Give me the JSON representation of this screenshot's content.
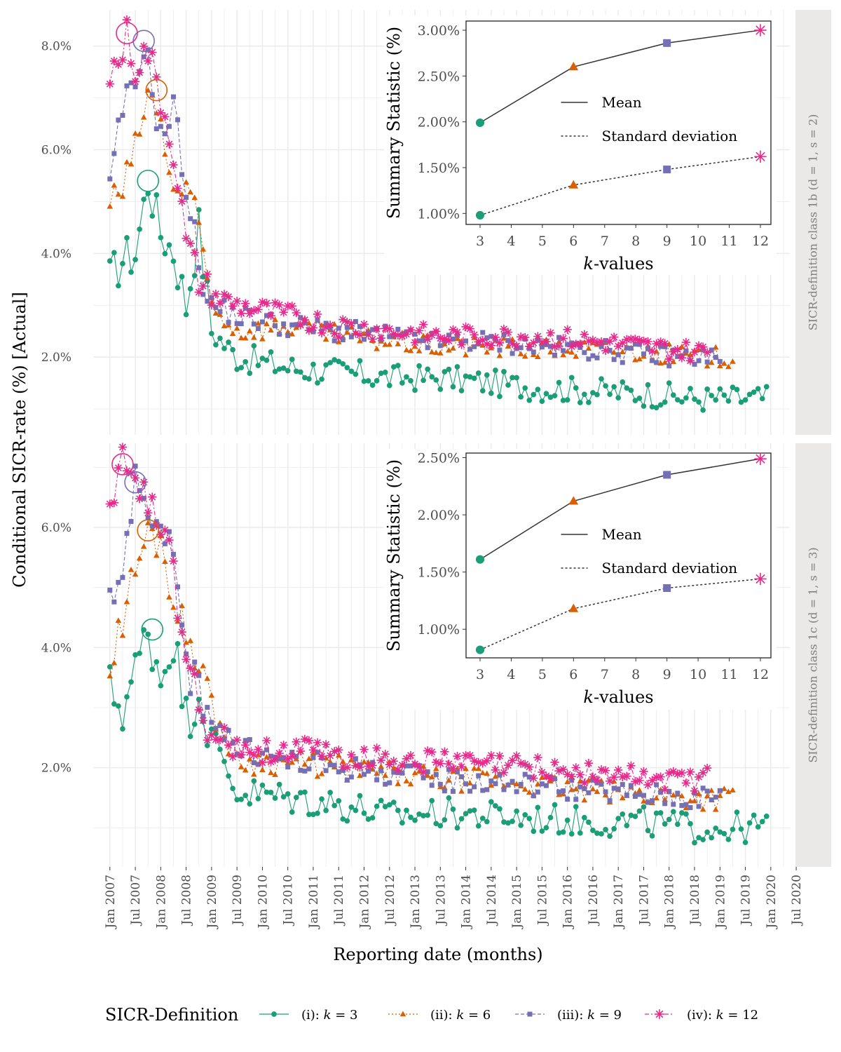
{
  "chart_data": {
    "type": "line",
    "xlabel": "Reporting date (months)",
    "ylabel": "Conditional SICR-rate (%) [Actual]",
    "x_ticks": [
      "Jan 2007",
      "Jul 2007",
      "Jan 2008",
      "Jul 2008",
      "Jan 2009",
      "Jul 2009",
      "Jan 2010",
      "Jul 2010",
      "Jan 2011",
      "Jul 2011",
      "Jan 2012",
      "Jul 2012",
      "Jan 2013",
      "Jul 2013",
      "Jan 2014",
      "Jul 2014",
      "Jan 2015",
      "Jul 2015",
      "Jan 2016",
      "Jul 2016",
      "Jan 2017",
      "Jul 2017",
      "Jan 2018",
      "Jul 2018",
      "Jan 2019",
      "Jul 2019",
      "Jan 2020",
      "Jul 2020"
    ],
    "legend": {
      "title": "SICR-Definition",
      "entries": [
        {
          "id": "k3",
          "prefix": "(i):",
          "label": "k = 3",
          "color": "#1b9e77",
          "marker": "circle",
          "dash": "solid"
        },
        {
          "id": "k6",
          "prefix": "(ii):",
          "label": "k = 6",
          "color": "#d95f02",
          "marker": "triangle",
          "dash": "dotted"
        },
        {
          "id": "k9",
          "prefix": "(iii):",
          "label": "k = 9",
          "color": "#7570b3",
          "marker": "square",
          "dash": "dashed"
        },
        {
          "id": "k12",
          "prefix": "(iv):",
          "label": "k = 12",
          "color": "#e7298a",
          "marker": "asterisk",
          "dash": "dashdot"
        }
      ]
    },
    "panels": [
      {
        "id": "top",
        "strip": "SICR-definition class 1b (d = 1, s = 2)",
        "ylim": [
          0.5,
          8.7
        ],
        "y_ticks": [
          2.0,
          4.0,
          6.0,
          8.0
        ],
        "y_tick_labels": [
          "2.0%",
          "4.0%",
          "6.0%",
          "8.0%"
        ],
        "series": [
          {
            "id": "k3",
            "start": "2007-01",
            "anchors": [
              [
                0,
                3.5
              ],
              [
                3,
                3.9
              ],
              [
                6,
                4.0
              ],
              [
                9,
                5.4
              ],
              [
                12,
                4.4
              ],
              [
                15,
                4.05
              ],
              [
                18,
                3.0
              ],
              [
                21,
                4.5
              ],
              [
                24,
                2.5
              ],
              [
                30,
                2.0
              ],
              [
                42,
                1.8
              ],
              [
                54,
                1.7
              ],
              [
                66,
                1.6
              ],
              [
                78,
                1.6
              ],
              [
                90,
                1.5
              ],
              [
                102,
                1.4
              ],
              [
                114,
                1.35
              ],
              [
                126,
                1.3
              ],
              [
                138,
                1.2
              ],
              [
                150,
                1.2
              ],
              [
                155,
                1.2
              ]
            ]
          },
          {
            "id": "k6",
            "start": "2007-01",
            "anchors": [
              [
                0,
                5.0
              ],
              [
                3,
                5.2
              ],
              [
                6,
                6.0
              ],
              [
                9,
                7.1
              ],
              [
                12,
                6.5
              ],
              [
                15,
                5.2
              ],
              [
                18,
                5.2
              ],
              [
                21,
                4.5
              ],
              [
                24,
                3.0
              ],
              [
                30,
                2.5
              ],
              [
                42,
                2.6
              ],
              [
                54,
                2.4
              ],
              [
                66,
                2.3
              ],
              [
                78,
                2.2
              ],
              [
                90,
                2.2
              ],
              [
                102,
                2.15
              ],
              [
                114,
                2.15
              ],
              [
                126,
                2.1
              ],
              [
                138,
                2.0
              ],
              [
                147,
                2.0
              ]
            ]
          },
          {
            "id": "k9",
            "start": "2007-01",
            "anchors": [
              [
                0,
                5.2
              ],
              [
                3,
                6.8
              ],
              [
                6,
                7.2
              ],
              [
                8,
                8.1
              ],
              [
                10,
                7.2
              ],
              [
                12,
                6.2
              ],
              [
                15,
                6.8
              ],
              [
                18,
                5.3
              ],
              [
                21,
                3.8
              ],
              [
                24,
                3.0
              ],
              [
                30,
                2.8
              ],
              [
                42,
                2.6
              ],
              [
                54,
                2.5
              ],
              [
                66,
                2.4
              ],
              [
                78,
                2.3
              ],
              [
                90,
                2.3
              ],
              [
                102,
                2.2
              ],
              [
                114,
                2.15
              ],
              [
                126,
                2.05
              ],
              [
                138,
                2.0
              ],
              [
                144,
                2.0
              ]
            ]
          },
          {
            "id": "k12",
            "start": "2007-01",
            "anchors": [
              [
                0,
                7.4
              ],
              [
                3,
                7.9
              ],
              [
                4,
                8.2
              ],
              [
                6,
                7.6
              ],
              [
                9,
                7.9
              ],
              [
                12,
                7.0
              ],
              [
                15,
                6.0
              ],
              [
                18,
                4.2
              ],
              [
                21,
                3.5
              ],
              [
                24,
                3.2
              ],
              [
                30,
                3.0
              ],
              [
                42,
                2.8
              ],
              [
                54,
                2.6
              ],
              [
                66,
                2.5
              ],
              [
                78,
                2.4
              ],
              [
                90,
                2.4
              ],
              [
                102,
                2.4
              ],
              [
                114,
                2.3
              ],
              [
                126,
                2.2
              ],
              [
                138,
                2.1
              ],
              [
                141,
                2.1
              ]
            ]
          }
        ],
        "highlights": [
          {
            "id": "k3",
            "month": 9,
            "value": 5.4
          },
          {
            "id": "k6",
            "month": 11,
            "value": 7.15
          },
          {
            "id": "k9",
            "month": 8,
            "value": 8.1
          },
          {
            "id": "k12",
            "month": 4,
            "value": 8.25
          }
        ],
        "inset": {
          "xlabel": "k-values",
          "ylabel": "Summary Statistic (%)",
          "x_ticks": [
            3,
            4,
            5,
            6,
            7,
            8,
            9,
            10,
            11,
            12
          ],
          "ylim": [
            0.88,
            3.1
          ],
          "y_ticks": [
            1.0,
            1.5,
            2.0,
            2.5,
            3.0
          ],
          "y_tick_labels": [
            "1.00%",
            "1.50%",
            "2.00%",
            "2.50%",
            "3.00%"
          ],
          "k": [
            3,
            6,
            9,
            12
          ],
          "mean": [
            1.99,
            2.6,
            2.86,
            3.0
          ],
          "sd": [
            0.98,
            1.31,
            1.48,
            1.62
          ],
          "legend": {
            "mean": "Mean",
            "sd": "Standard deviation"
          }
        }
      },
      {
        "id": "bottom",
        "strip": "SICR-definition class 1c (d = 1, s = 3)",
        "ylim": [
          0.35,
          7.4
        ],
        "y_ticks": [
          2.0,
          4.0,
          6.0
        ],
        "y_tick_labels": [
          "2.0%",
          "4.0%",
          "6.0%"
        ],
        "series": [
          {
            "id": "k3",
            "start": "2007-01",
            "anchors": [
              [
                0,
                3.3
              ],
              [
                3,
                3.0
              ],
              [
                6,
                3.6
              ],
              [
                9,
                4.3
              ],
              [
                12,
                3.5
              ],
              [
                15,
                4.2
              ],
              [
                18,
                2.8
              ],
              [
                21,
                3.3
              ],
              [
                24,
                2.5
              ],
              [
                30,
                1.6
              ],
              [
                42,
                1.5
              ],
              [
                54,
                1.4
              ],
              [
                66,
                1.2
              ],
              [
                78,
                1.25
              ],
              [
                90,
                1.2
              ],
              [
                102,
                1.15
              ],
              [
                114,
                1.1
              ],
              [
                126,
                1.1
              ],
              [
                138,
                1.0
              ],
              [
                150,
                1.0
              ],
              [
                155,
                1.0
              ]
            ]
          },
          {
            "id": "k6",
            "start": "2007-01",
            "anchors": [
              [
                0,
                3.6
              ],
              [
                3,
                4.5
              ],
              [
                6,
                5.3
              ],
              [
                9,
                5.9
              ],
              [
                12,
                5.8
              ],
              [
                15,
                4.8
              ],
              [
                18,
                4.2
              ],
              [
                21,
                3.9
              ],
              [
                24,
                3.0
              ],
              [
                30,
                2.1
              ],
              [
                42,
                2.1
              ],
              [
                54,
                2.0
              ],
              [
                66,
                1.9
              ],
              [
                78,
                1.8
              ],
              [
                90,
                1.8
              ],
              [
                102,
                1.7
              ],
              [
                114,
                1.6
              ],
              [
                126,
                1.55
              ],
              [
                138,
                1.5
              ],
              [
                147,
                1.5
              ]
            ]
          },
          {
            "id": "k9",
            "start": "2007-01",
            "anchors": [
              [
                0,
                4.7
              ],
              [
                3,
                5.5
              ],
              [
                6,
                6.7
              ],
              [
                8,
                6.7
              ],
              [
                10,
                6.2
              ],
              [
                12,
                5.8
              ],
              [
                15,
                5.5
              ],
              [
                18,
                3.7
              ],
              [
                21,
                3.3
              ],
              [
                24,
                2.9
              ],
              [
                30,
                2.3
              ],
              [
                42,
                2.1
              ],
              [
                54,
                2.0
              ],
              [
                66,
                1.9
              ],
              [
                78,
                1.8
              ],
              [
                90,
                1.75
              ],
              [
                102,
                1.7
              ],
              [
                114,
                1.6
              ],
              [
                126,
                1.55
              ],
              [
                138,
                1.5
              ],
              [
                144,
                1.5
              ]
            ]
          },
          {
            "id": "k12",
            "start": "2007-01",
            "anchors": [
              [
                0,
                6.5
              ],
              [
                3,
                7.0
              ],
              [
                6,
                6.8
              ],
              [
                9,
                6.3
              ],
              [
                12,
                6.2
              ],
              [
                15,
                5.2
              ],
              [
                18,
                4.0
              ],
              [
                21,
                2.9
              ],
              [
                24,
                2.6
              ],
              [
                30,
                2.3
              ],
              [
                42,
                2.3
              ],
              [
                54,
                2.2
              ],
              [
                66,
                2.15
              ],
              [
                78,
                2.1
              ],
              [
                90,
                2.05
              ],
              [
                102,
                2.0
              ],
              [
                114,
                1.9
              ],
              [
                126,
                1.85
              ],
              [
                138,
                1.8
              ],
              [
                141,
                1.8
              ]
            ]
          }
        ],
        "highlights": [
          {
            "id": "k3",
            "month": 10,
            "value": 4.3
          },
          {
            "id": "k6",
            "month": 9,
            "value": 5.95
          },
          {
            "id": "k9",
            "month": 6,
            "value": 6.75
          },
          {
            "id": "k12",
            "month": 3,
            "value": 7.05
          }
        ],
        "inset": {
          "xlabel": "k-values",
          "ylabel": "Summary Statistic (%)",
          "x_ticks": [
            3,
            4,
            5,
            6,
            7,
            8,
            9,
            10,
            11,
            12
          ],
          "ylim": [
            0.75,
            2.54
          ],
          "y_ticks": [
            1.0,
            1.5,
            2.0,
            2.5
          ],
          "y_tick_labels": [
            "1.00%",
            "1.50%",
            "2.00%",
            "2.50%"
          ],
          "k": [
            3,
            6,
            9,
            12
          ],
          "mean": [
            1.61,
            2.12,
            2.35,
            2.49
          ],
          "sd": [
            0.82,
            1.18,
            1.36,
            1.44
          ],
          "legend": {
            "mean": "Mean",
            "sd": "Standard deviation"
          }
        }
      }
    ]
  }
}
